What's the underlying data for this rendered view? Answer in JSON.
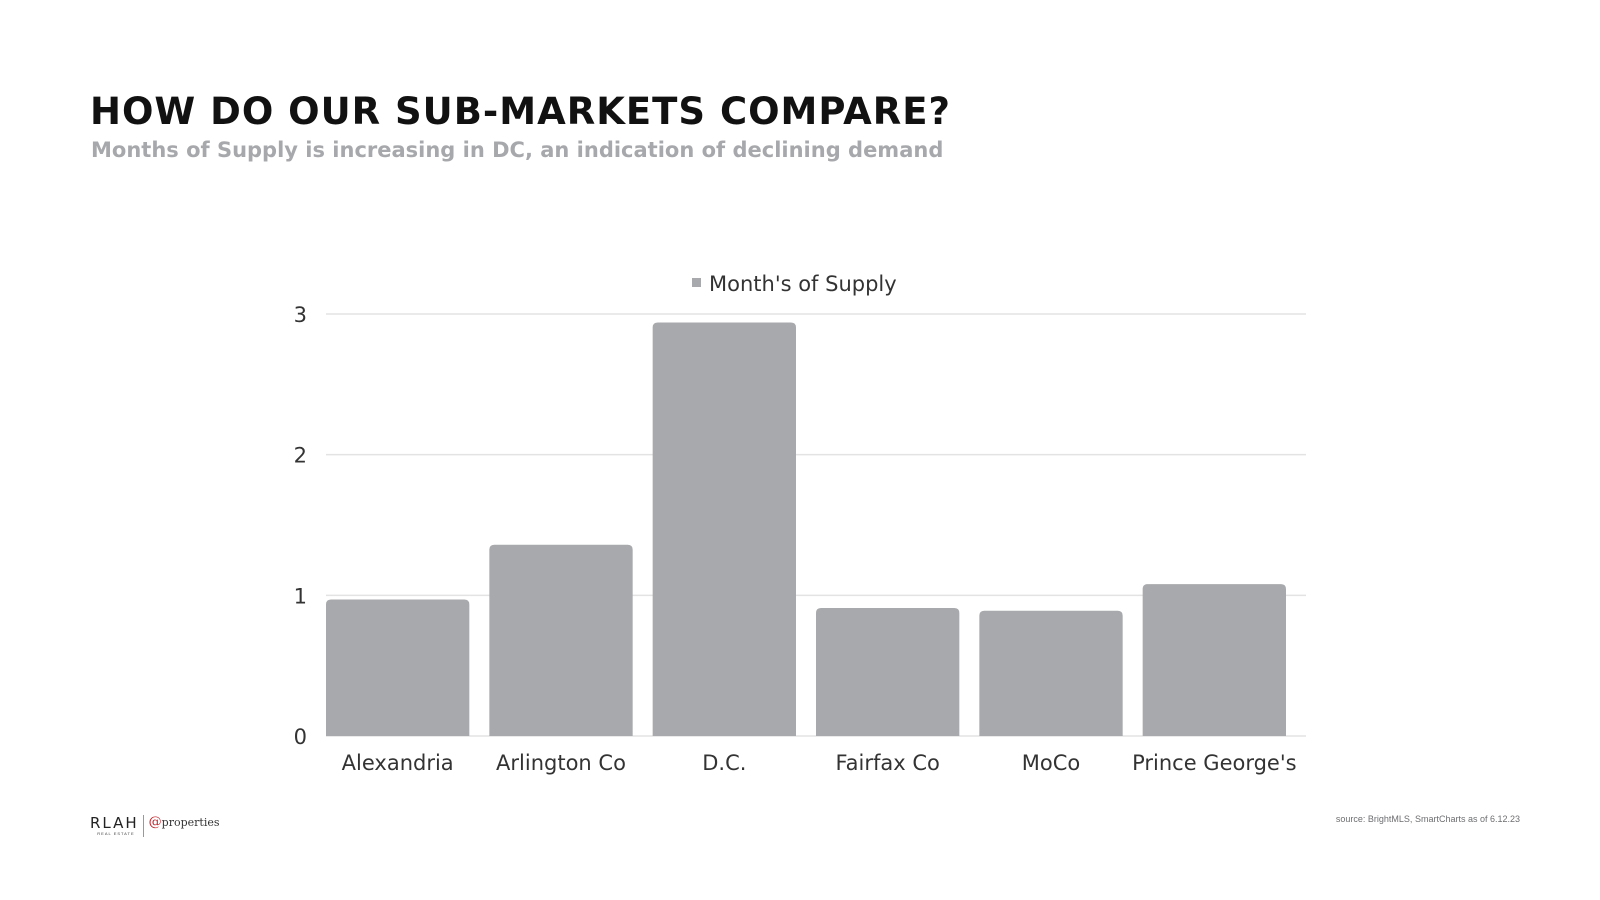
{
  "header": {
    "title": "HOW DO OUR SUB-MARKETS COMPARE?",
    "subtitle": "Months of Supply is increasing in DC, an indication of declining demand"
  },
  "chart_data": {
    "type": "bar",
    "categories": [
      "Alexandria",
      "Arlington Co",
      "D.C.",
      "Fairfax Co",
      "MoCo",
      "Prince George's"
    ],
    "series": [
      {
        "name": "Month's of Supply",
        "values": [
          0.97,
          1.36,
          2.94,
          0.91,
          0.89,
          1.08
        ],
        "color": "#a8a9ac"
      }
    ],
    "yticks": [
      "0",
      "1",
      "2",
      "3"
    ],
    "ylim": [
      0,
      3
    ],
    "grid": true,
    "legend_position": "top-center",
    "gridline_color": "#e3e3e3"
  },
  "footer": {
    "source": "source: BrightMLS, SmartCharts as of 6.12.23",
    "logo_rlah": "RLAH",
    "logo_rlah_sub": "REAL ESTATE",
    "logo_at": "@",
    "logo_properties": "properties"
  }
}
